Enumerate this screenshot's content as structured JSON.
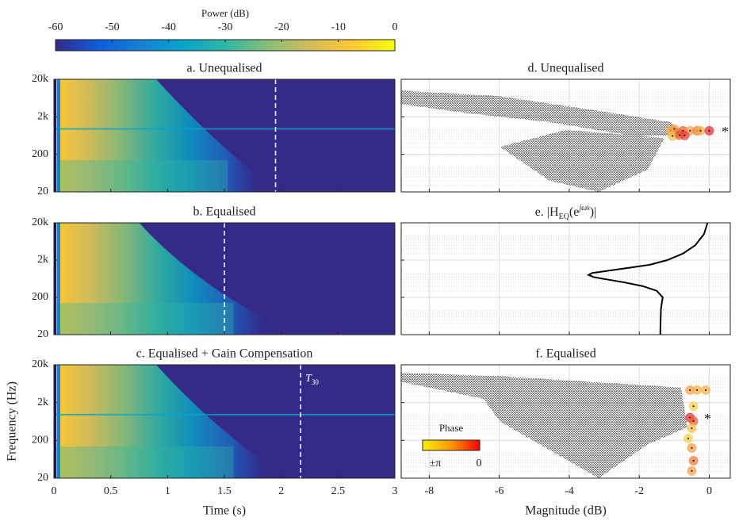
{
  "chart_data": [
    {
      "type": "colorbar",
      "title": "Power (dB)",
      "xlim": [
        -60,
        0
      ],
      "xticks": [
        -60,
        -50,
        -40,
        -30,
        -20,
        -10,
        0
      ],
      "colormap": [
        "#352a87",
        "#0f5cdd",
        "#1481d6",
        "#06a4ca",
        "#2eb7a4",
        "#87bf77",
        "#d1bb59",
        "#fec832",
        "#f9fb0e"
      ]
    },
    {
      "type": "spectrogram",
      "title": "a. Unequalised",
      "xlim": [
        0,
        3
      ],
      "xticks": [
        0,
        0.5,
        1,
        1.5,
        2,
        2.5,
        3
      ],
      "xtick_labels": false,
      "ylim": [
        20,
        20000
      ],
      "log_y": true,
      "yticks": [
        {
          "value": 20,
          "label": "20"
        },
        {
          "value": 200,
          "label": "200"
        },
        {
          "value": 2000,
          "label": "2k"
        },
        {
          "value": 20000,
          "label": "20k"
        }
      ],
      "t30": 1.95
    },
    {
      "type": "spectrogram",
      "title": "b. Equalised",
      "xlim": [
        0,
        3
      ],
      "xticks": [
        0,
        0.5,
        1,
        1.5,
        2,
        2.5,
        3
      ],
      "xtick_labels": false,
      "ylim": [
        20,
        20000
      ],
      "log_y": true,
      "yticks": [
        {
          "value": 20,
          "label": "20"
        },
        {
          "value": 200,
          "label": "200"
        },
        {
          "value": 2000,
          "label": "2k"
        },
        {
          "value": 20000,
          "label": "20k"
        }
      ],
      "t30": 1.5
    },
    {
      "type": "spectrogram",
      "title": "c. Equalised + Gain Compensation",
      "xlim": [
        0,
        3
      ],
      "xticks": [
        0,
        0.5,
        1,
        1.5,
        2,
        2.5,
        3
      ],
      "xtick_labels": true,
      "xlabel": "Time (s)",
      "ylabel": "Frequency (Hz)",
      "ylim": [
        20,
        20000
      ],
      "log_y": true,
      "yticks": [
        {
          "value": 20,
          "label": "20"
        },
        {
          "value": 200,
          "label": "200"
        },
        {
          "value": 2000,
          "label": "2k"
        },
        {
          "value": 20000,
          "label": "20k"
        }
      ],
      "t30": 2.17,
      "t30_annotation": {
        "symbol": "T",
        "subscript": "30"
      }
    },
    {
      "type": "scatter",
      "title": "d. Unequalised",
      "xlim": [
        -8.8,
        0.6
      ],
      "xticks": [
        -8,
        -6,
        -4,
        -2,
        0
      ],
      "xtick_labels": false,
      "ylim": [
        20,
        20000
      ],
      "log_y": true,
      "yticks": [
        20,
        200,
        2000,
        20000
      ],
      "grid": true,
      "annotation": "*",
      "x": [
        -1.1,
        -1.0,
        -0.9,
        -0.75,
        -0.55,
        -0.35,
        -0.25,
        0,
        -1.05,
        -0.85,
        -0.7
      ],
      "y": [
        850,
        950,
        750,
        850,
        850,
        850,
        850,
        850,
        620,
        650,
        640
      ],
      "colors": [
        "#f5b04a",
        "#f7a24a",
        "#f0803a",
        "#f0603a",
        "#f5a04a",
        "#f0803a",
        "#f5b04a",
        "#e8303a",
        "#f7c04a",
        "#f0603a",
        "#e8403a"
      ]
    },
    {
      "type": "line",
      "title_parts": {
        "prefix": "e. |H",
        "sub": "EQ",
        "mid": "(e",
        "sup": "jω",
        "supsub": "k",
        "suffix": ")|"
      },
      "xlim": [
        -8.8,
        0.6
      ],
      "xticks": [
        -8,
        -6,
        -4,
        -2,
        0
      ],
      "xtick_labels": false,
      "ylim": [
        20,
        20000
      ],
      "log_y": true,
      "yticks": [
        20,
        200,
        2000,
        20000
      ],
      "grid": true,
      "color": "#000000",
      "frequencies": [
        20,
        50,
        100,
        200,
        300,
        400,
        500,
        600,
        700,
        800,
        900,
        1000,
        1200,
        1500,
        2000,
        3000,
        5000,
        10000,
        20000
      ],
      "values": [
        -1.4,
        -1.39,
        -1.38,
        -1.33,
        -1.5,
        -1.9,
        -2.4,
        -2.9,
        -3.3,
        -3.45,
        -3.35,
        -3.0,
        -2.4,
        -1.7,
        -1.2,
        -0.75,
        -0.4,
        -0.15,
        -0.05
      ]
    },
    {
      "type": "scatter",
      "title": "f. Equalised",
      "xlim": [
        -8.8,
        0.6
      ],
      "xticks": [
        -8,
        -6,
        -4,
        -2,
        0
      ],
      "xtick_labels": true,
      "xlabel": "Magnitude (dB)",
      "ylim": [
        20,
        20000
      ],
      "log_y": true,
      "yticks": [
        20,
        200,
        2000,
        20000
      ],
      "grid": true,
      "annotation": "*",
      "x": [
        -0.55,
        -0.35,
        -0.1,
        -0.45,
        -0.55,
        -0.45,
        -0.5,
        -0.6,
        -0.5,
        -0.45,
        -0.5
      ],
      "y": [
        4300,
        4300,
        4300,
        1600,
        800,
        650,
        420,
        225,
        126,
        58,
        31
      ],
      "colors": [
        "#f5a04a",
        "#f7b04a",
        "#f5b04a",
        "#f7d04a",
        "#e8303a",
        "#f0603a",
        "#f5c04a",
        "#f7d04a",
        "#f5a04a",
        "#f0803a",
        "#f5a04a"
      ],
      "phase_colorbar": {
        "title": "Phase",
        "colors": [
          "#ffee00",
          "#ff9900",
          "#ff0000"
        ],
        "labels": [
          "±π",
          "0"
        ]
      }
    }
  ]
}
